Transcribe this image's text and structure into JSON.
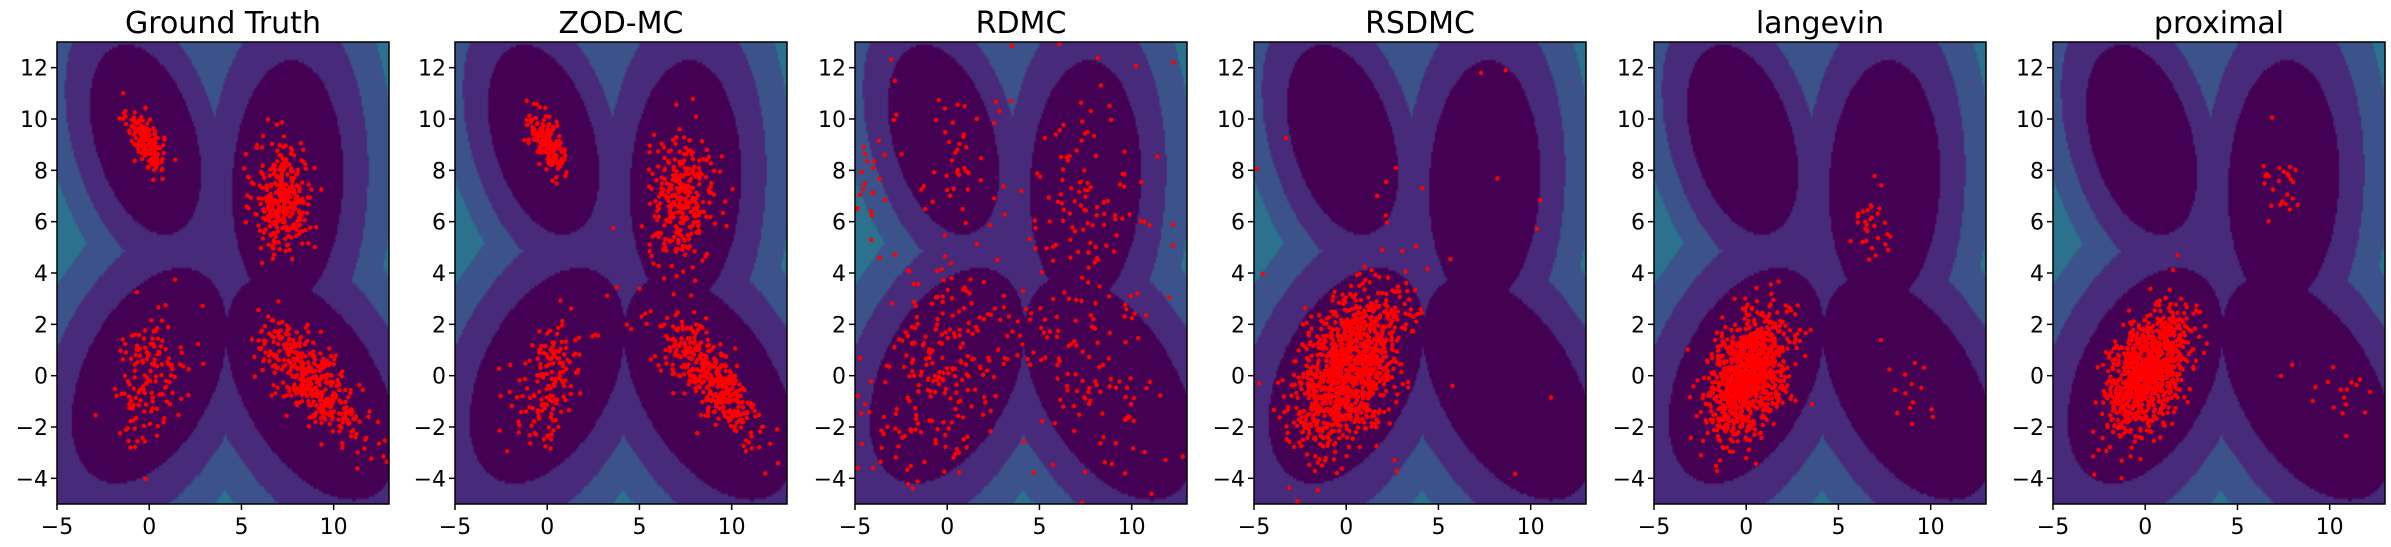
{
  "figure": {
    "colors": {
      "samples": "#ff0000",
      "levels": [
        "#440154",
        "#472b7a",
        "#3b528b",
        "#2c718e",
        "#21918c",
        "#27ad81",
        "#5cc863",
        "#aadc32",
        "#fde725"
      ]
    }
  },
  "chart_data": [
    {
      "type": "scatter",
      "title": "Ground Truth",
      "xlim": [
        -5,
        13
      ],
      "ylim": [
        -5,
        13
      ],
      "xticks": [
        -5,
        0,
        5,
        10
      ],
      "yticks": [
        -4,
        -2,
        0,
        2,
        4,
        6,
        8,
        10,
        12
      ],
      "xtick_labels": [
        "−5",
        "0",
        "5",
        "10"
      ],
      "ytick_labels": [
        "−4",
        "−2",
        "0",
        "2",
        "4",
        "6",
        "8",
        "10",
        "12"
      ],
      "background": "filled contour of the target log-density (4 modes)",
      "clusters": [
        {
          "center": [
            -0.2,
            9.2
          ],
          "sd": [
            0.5,
            0.6
          ],
          "rho": -0.6,
          "n": 170
        },
        {
          "center": [
            7.3,
            6.9
          ],
          "sd": [
            0.8,
            1.1
          ],
          "rho": 0.0,
          "n": 330
        },
        {
          "center": [
            0.0,
            0.0
          ],
          "sd": [
            1.0,
            1.3
          ],
          "rho": 0.4,
          "n": 150
        },
        {
          "center": [
            8.8,
            -0.2
          ],
          "sd": [
            1.4,
            1.2
          ],
          "rho": -0.75,
          "n": 420
        }
      ],
      "uniform_noise": 0
    },
    {
      "type": "scatter",
      "title": "ZOD-MC",
      "xlim": [
        -5,
        13
      ],
      "ylim": [
        -5,
        13
      ],
      "xticks": [
        -5,
        0,
        5,
        10
      ],
      "yticks": [
        -4,
        -2,
        0,
        2,
        4,
        6,
        8,
        10,
        12
      ],
      "xtick_labels": [
        "−5",
        "0",
        "5",
        "10"
      ],
      "ytick_labels": [
        "−4",
        "−2",
        "0",
        "2",
        "4",
        "6",
        "8",
        "10",
        "12"
      ],
      "background": "filled contour of the target log-density (4 modes)",
      "clusters": [
        {
          "center": [
            0.0,
            9.1
          ],
          "sd": [
            0.5,
            0.6
          ],
          "rho": -0.6,
          "n": 170
        },
        {
          "center": [
            7.3,
            6.8
          ],
          "sd": [
            0.9,
            1.2
          ],
          "rho": 0.0,
          "n": 310
        },
        {
          "center": [
            0.1,
            -0.2
          ],
          "sd": [
            1.0,
            1.3
          ],
          "rho": 0.4,
          "n": 160
        },
        {
          "center": [
            8.8,
            -0.1
          ],
          "sd": [
            1.4,
            1.2
          ],
          "rho": -0.75,
          "n": 400
        }
      ],
      "uniform_noise": 0
    },
    {
      "type": "scatter",
      "title": "RDMC",
      "xlim": [
        -5,
        13
      ],
      "ylim": [
        -5,
        13
      ],
      "xticks": [
        -5,
        0,
        5,
        10
      ],
      "yticks": [
        -4,
        -2,
        0,
        2,
        4,
        6,
        8,
        10,
        12
      ],
      "xtick_labels": [
        "−5",
        "0",
        "5",
        "10"
      ],
      "ytick_labels": [
        "−4",
        "−2",
        "0",
        "2",
        "4",
        "6",
        "8",
        "10",
        "12"
      ],
      "background": "filled contour of the target log-density (4 modes)",
      "clusters": [
        {
          "center": [
            -0.2,
            0.2
          ],
          "sd": [
            2.0,
            2.2
          ],
          "rho": 0.3,
          "n": 230
        },
        {
          "center": [
            7.2,
            6.0
          ],
          "sd": [
            1.6,
            2.2
          ],
          "rho": 0.0,
          "n": 110
        },
        {
          "center": [
            8.3,
            0.0
          ],
          "sd": [
            2.0,
            2.0
          ],
          "rho": -0.5,
          "n": 80
        },
        {
          "center": [
            0.5,
            8.5
          ],
          "sd": [
            0.9,
            1.4
          ],
          "rho": 0.0,
          "n": 40
        },
        {
          "center": [
            -4.3,
            7.5
          ],
          "sd": [
            0.7,
            1.3
          ],
          "rho": 0.0,
          "n": 25
        }
      ],
      "uniform_noise": 45
    },
    {
      "type": "scatter",
      "title": "RSDMC",
      "xlim": [
        -5,
        13
      ],
      "ylim": [
        -5,
        13
      ],
      "xticks": [
        -5,
        0,
        5,
        10
      ],
      "yticks": [
        -4,
        -2,
        0,
        2,
        4,
        6,
        8,
        10,
        12
      ],
      "xtick_labels": [
        "−5",
        "0",
        "5",
        "10"
      ],
      "ytick_labels": [
        "−4",
        "−2",
        "0",
        "2",
        "4",
        "6",
        "8",
        "10",
        "12"
      ],
      "background": "filled contour of the target log-density (4 modes)",
      "clusters": [
        {
          "center": [
            0.2,
            0.3
          ],
          "sd": [
            1.4,
            1.5
          ],
          "rho": 0.45,
          "n": 1150
        }
      ],
      "uniform_noise": 25
    },
    {
      "type": "scatter",
      "title": "langevin",
      "xlim": [
        -5,
        13
      ],
      "ylim": [
        -5,
        13
      ],
      "xticks": [
        -5,
        0,
        5,
        10
      ],
      "yticks": [
        -4,
        -2,
        0,
        2,
        4,
        6,
        8,
        10,
        12
      ],
      "xtick_labels": [
        "−5",
        "0",
        "5",
        "10"
      ],
      "ytick_labels": [
        "−4",
        "−2",
        "0",
        "2",
        "4",
        "6",
        "8",
        "10",
        "12"
      ],
      "background": "filled contour of the target log-density (4 modes)",
      "clusters": [
        {
          "center": [
            0.1,
            0.0
          ],
          "sd": [
            1.1,
            1.2
          ],
          "rho": 0.45,
          "n": 1000
        },
        {
          "center": [
            6.9,
            6.1
          ],
          "sd": [
            0.5,
            1.0
          ],
          "rho": 0.0,
          "n": 30
        },
        {
          "center": [
            9.0,
            -0.8
          ],
          "sd": [
            0.9,
            0.7
          ],
          "rho": -0.5,
          "n": 15
        }
      ],
      "uniform_noise": 0
    },
    {
      "type": "scatter",
      "title": "proximal",
      "xlim": [
        -5,
        13
      ],
      "ylim": [
        -5,
        13
      ],
      "xticks": [
        -5,
        0,
        5,
        10
      ],
      "yticks": [
        -4,
        -2,
        0,
        2,
        4,
        6,
        8,
        10,
        12
      ],
      "xtick_labels": [
        "−5",
        "0",
        "5",
        "10"
      ],
      "ytick_labels": [
        "−4",
        "−2",
        "0",
        "2",
        "4",
        "6",
        "8",
        "10",
        "12"
      ],
      "background": "filled contour of the target log-density (4 modes)",
      "clusters": [
        {
          "center": [
            0.1,
            0.1
          ],
          "sd": [
            1.1,
            1.2
          ],
          "rho": 0.45,
          "n": 1000
        },
        {
          "center": [
            7.2,
            7.5
          ],
          "sd": [
            0.7,
            0.8
          ],
          "rho": 0.0,
          "n": 25
        },
        {
          "center": [
            10.5,
            -1.2
          ],
          "sd": [
            1.2,
            0.8
          ],
          "rho": -0.5,
          "n": 18
        }
      ],
      "uniform_noise": 0
    }
  ]
}
